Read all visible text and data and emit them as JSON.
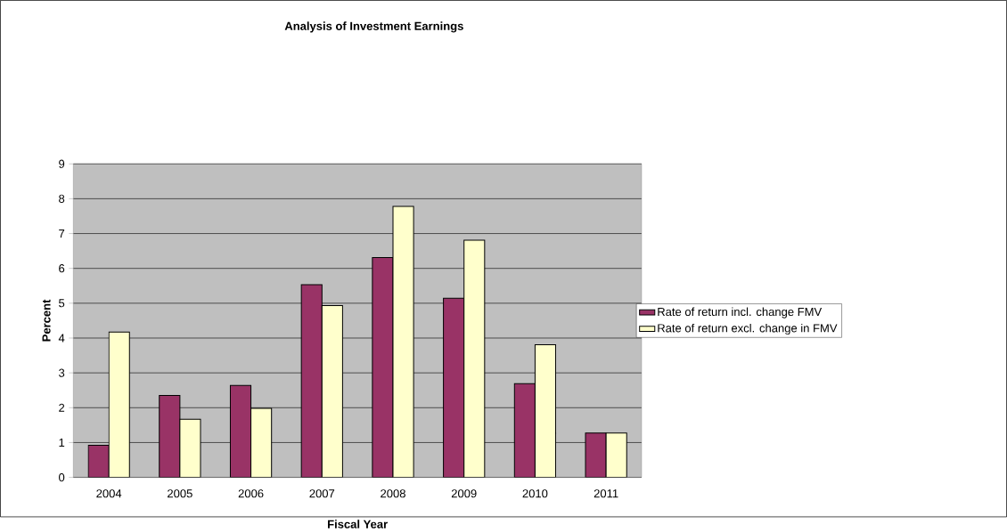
{
  "chart_data": {
    "type": "bar",
    "title": "Analysis of Investment Earnings",
    "xlabel": "Fiscal Year",
    "ylabel": "Percent",
    "categories": [
      "2004",
      "2005",
      "2006",
      "2007",
      "2008",
      "2009",
      "2010",
      "2011"
    ],
    "series": [
      {
        "name": "Rate of return incl. change FMV",
        "color": "#993366",
        "values": [
          0.92,
          2.35,
          2.64,
          5.53,
          6.31,
          5.14,
          2.69,
          1.27
        ]
      },
      {
        "name": "Rate of return excl. change in FMV",
        "color": "#ffffcc",
        "values": [
          4.17,
          1.67,
          1.98,
          4.93,
          7.78,
          6.81,
          3.81,
          1.27
        ]
      }
    ],
    "ylim": [
      0,
      9
    ],
    "yticks": [
      0,
      1,
      2,
      3,
      4,
      5,
      6,
      7,
      8,
      9
    ],
    "grid": "y",
    "legend": "right"
  }
}
